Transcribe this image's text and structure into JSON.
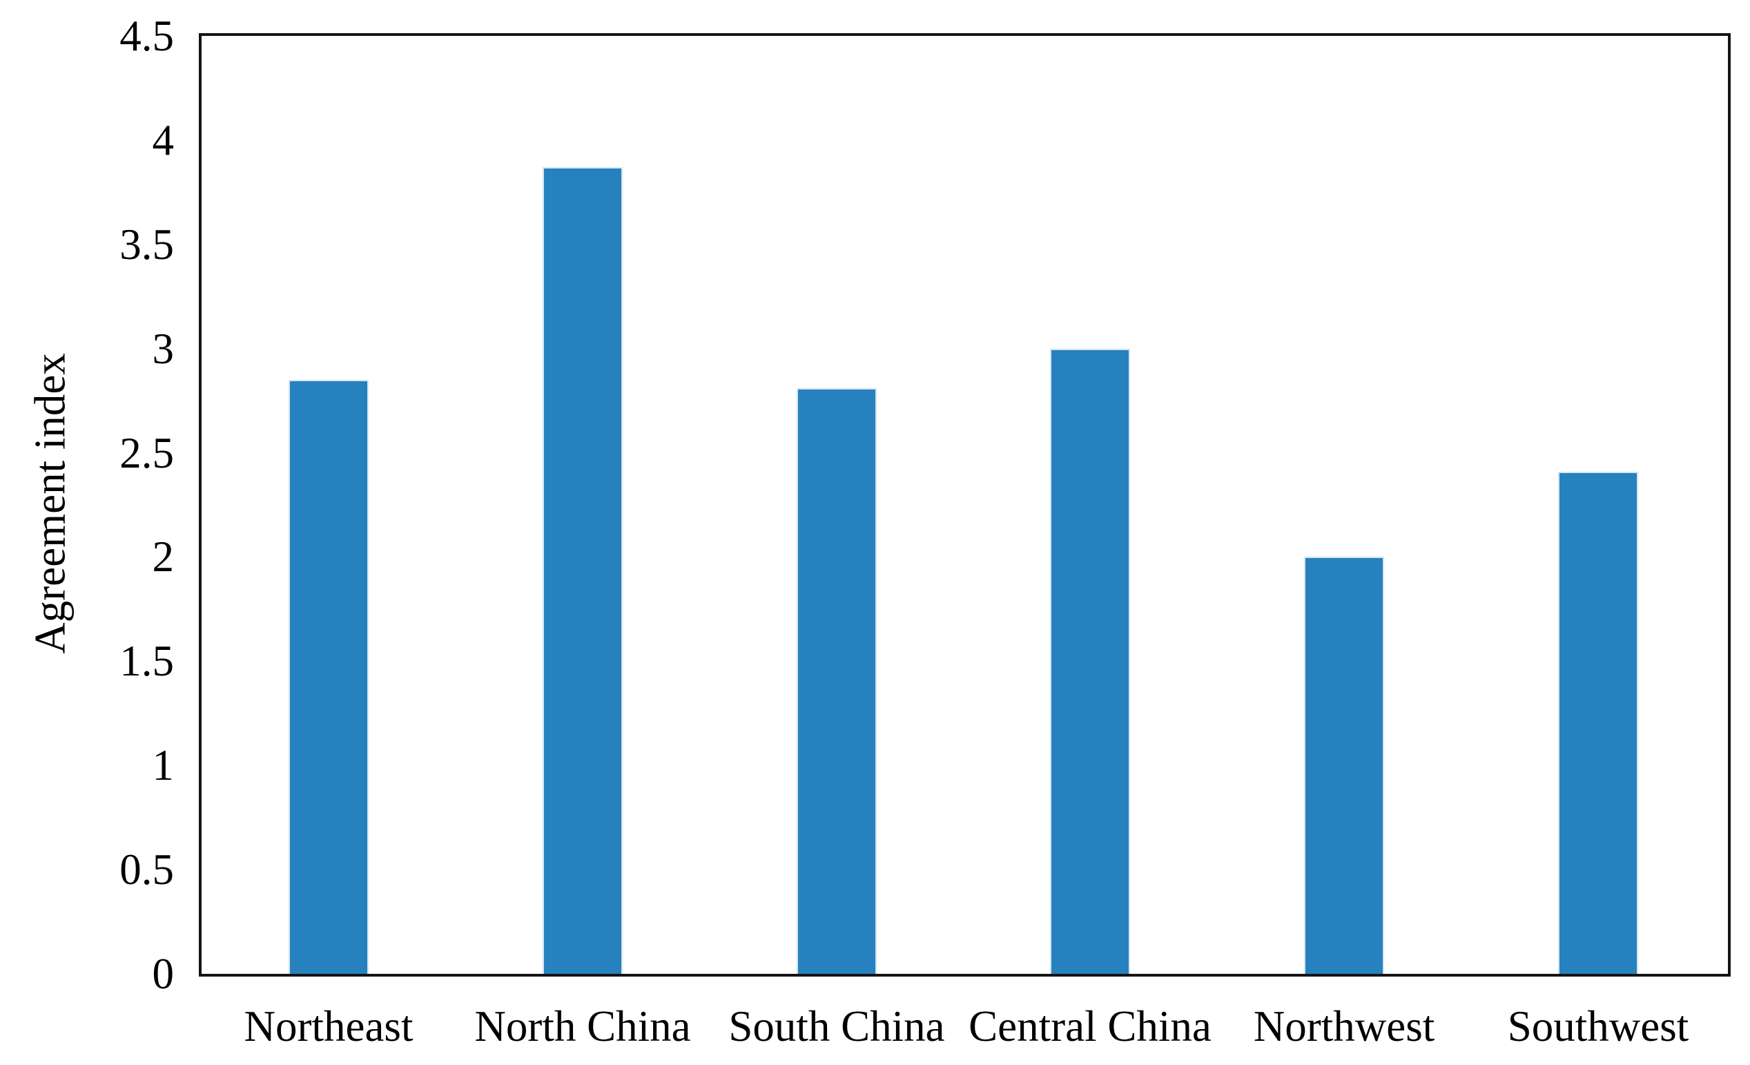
{
  "chart_data": {
    "type": "bar",
    "title": "",
    "categories": [
      "Northeast",
      "North China",
      "South China",
      "Central China",
      "Northwest",
      "Southwest"
    ],
    "values": [
      2.85,
      3.87,
      2.81,
      3.0,
      2.0,
      2.41
    ],
    "xlabel": "",
    "ylabel": "Agreement index",
    "ylim": [
      0,
      4.5
    ],
    "ytick_step": 0.5,
    "ytick_labels": [
      "0",
      "0.5",
      "1",
      "1.5",
      "2",
      "2.5",
      "3",
      "3.5",
      "4",
      "4.5"
    ],
    "grid": false,
    "legend": "none",
    "bar_color": "#2781BE",
    "bar_edge_color": "#D4E5F3",
    "axis_color": "#141414",
    "text_color": "#000000",
    "background_color": "#FFFFFF"
  }
}
